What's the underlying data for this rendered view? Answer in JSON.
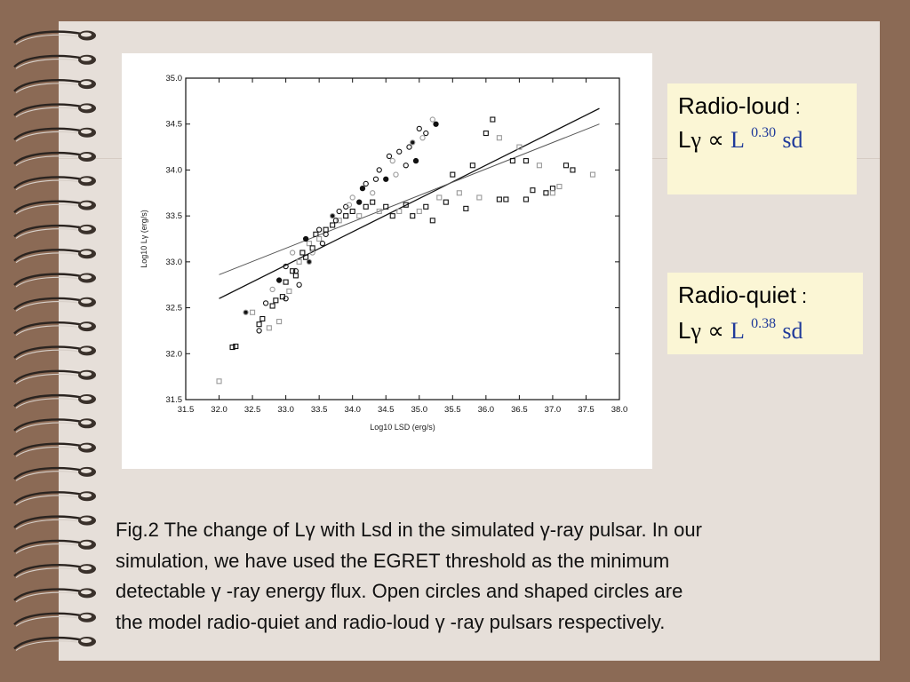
{
  "right_boxes": {
    "radio_loud": {
      "label": "Radio-loud",
      "colon": ":",
      "L": "L",
      "gamma": "γ",
      "propto": "∝",
      "L2": "L",
      "exponent": "0.30",
      "sub": "sd"
    },
    "radio_quiet": {
      "label": "Radio-quiet",
      "colon": ":",
      "L": "L",
      "gamma": "γ",
      "propto": "∝",
      "L2": "L",
      "exponent": "0.38",
      "sub": "sd"
    }
  },
  "caption": {
    "lines": [
      "Fig.2 The change of Lγ with Lsd in the simulated γ-ray pulsar. In our",
      "simulation, we have used the EGRET threshold as the minimum",
      "detectable γ -ray energy flux. Open circles and shaped circles are",
      "the model radio-quiet and radio-loud γ -ray pulsars respectively."
    ]
  },
  "colors": {
    "background": "#8b6a55",
    "paper": "#e6dfd9",
    "box_fill": "#fbf6d5",
    "formula_blue": "#1f3a9a"
  },
  "chart_data": {
    "type": "scatter",
    "title": "",
    "xlabel": "Log10 LSD (erg/s)",
    "ylabel": "Log10 Lγ (erg/s)",
    "xlim": [
      31.5,
      38.0
    ],
    "ylim": [
      31.5,
      35.0
    ],
    "x_ticks": [
      "31.5",
      "32.0",
      "32.5",
      "33.0",
      "33.5",
      "34.0",
      "34.5",
      "35.0",
      "35.5",
      "36.0",
      "36.5",
      "37.0",
      "37.5",
      "38.0"
    ],
    "y_ticks": [
      "31.5",
      "32.0",
      "32.5",
      "33.0",
      "33.5",
      "34.0",
      "34.5",
      "35.0"
    ],
    "grid": false,
    "lines": [
      {
        "points": [
          [
            32.0,
            32.6
          ],
          [
            37.7,
            34.67
          ]
        ]
      },
      {
        "points": [
          [
            32.0,
            32.86
          ],
          [
            37.7,
            34.5
          ]
        ]
      }
    ],
    "series": [
      {
        "marker": "square",
        "points": [
          [
            32.0,
            31.7
          ],
          [
            32.2,
            32.07
          ],
          [
            32.25,
            32.08
          ],
          [
            32.5,
            32.45
          ],
          [
            32.6,
            32.32
          ],
          [
            32.65,
            32.38
          ],
          [
            32.75,
            32.28
          ],
          [
            32.8,
            32.52
          ],
          [
            32.85,
            32.58
          ],
          [
            32.9,
            32.35
          ],
          [
            32.95,
            32.62
          ],
          [
            33.0,
            32.78
          ],
          [
            33.05,
            32.68
          ],
          [
            33.1,
            32.9
          ],
          [
            33.15,
            32.85
          ],
          [
            33.2,
            33.0
          ],
          [
            33.25,
            33.1
          ],
          [
            33.3,
            33.05
          ],
          [
            33.35,
            33.2
          ],
          [
            33.4,
            33.15
          ],
          [
            33.45,
            33.3
          ],
          [
            33.5,
            33.25
          ],
          [
            33.6,
            33.35
          ],
          [
            33.7,
            33.4
          ],
          [
            33.8,
            33.45
          ],
          [
            33.9,
            33.5
          ],
          [
            34.0,
            33.55
          ],
          [
            34.1,
            33.5
          ],
          [
            34.2,
            33.6
          ],
          [
            34.3,
            33.65
          ],
          [
            34.4,
            33.55
          ],
          [
            34.5,
            33.6
          ],
          [
            34.6,
            33.5
          ],
          [
            34.7,
            33.55
          ],
          [
            34.8,
            33.62
          ],
          [
            34.9,
            33.5
          ],
          [
            35.0,
            33.55
          ],
          [
            35.1,
            33.6
          ],
          [
            35.2,
            33.45
          ],
          [
            35.3,
            33.7
          ],
          [
            35.4,
            33.65
          ],
          [
            35.5,
            33.95
          ],
          [
            35.6,
            33.75
          ],
          [
            35.7,
            33.58
          ],
          [
            35.8,
            34.05
          ],
          [
            35.9,
            33.7
          ],
          [
            36.0,
            34.4
          ],
          [
            36.1,
            34.55
          ],
          [
            36.2,
            34.35
          ],
          [
            36.3,
            33.68
          ],
          [
            36.4,
            34.1
          ],
          [
            36.5,
            34.25
          ],
          [
            36.6,
            34.1
          ],
          [
            36.7,
            33.78
          ],
          [
            36.8,
            34.05
          ],
          [
            36.9,
            33.75
          ],
          [
            37.0,
            33.8
          ],
          [
            37.1,
            33.82
          ],
          [
            37.2,
            34.05
          ],
          [
            37.3,
            34.0
          ],
          [
            37.6,
            33.95
          ],
          [
            36.2,
            33.68
          ],
          [
            36.6,
            33.68
          ],
          [
            37.0,
            33.75
          ]
        ]
      },
      {
        "marker": "circle",
        "points": [
          [
            32.4,
            32.45
          ],
          [
            32.6,
            32.25
          ],
          [
            32.7,
            32.55
          ],
          [
            32.8,
            32.7
          ],
          [
            32.9,
            32.8
          ],
          [
            33.0,
            32.95
          ],
          [
            33.1,
            33.1
          ],
          [
            33.2,
            32.75
          ],
          [
            33.3,
            33.25
          ],
          [
            33.4,
            33.1
          ],
          [
            33.5,
            33.35
          ],
          [
            33.6,
            33.3
          ],
          [
            33.7,
            33.5
          ],
          [
            33.8,
            33.55
          ],
          [
            33.9,
            33.6
          ],
          [
            34.0,
            33.7
          ],
          [
            34.1,
            33.65
          ],
          [
            34.2,
            33.85
          ],
          [
            34.3,
            33.75
          ],
          [
            34.4,
            34.0
          ],
          [
            34.5,
            33.9
          ],
          [
            34.6,
            34.1
          ],
          [
            34.7,
            34.2
          ],
          [
            34.8,
            34.05
          ],
          [
            34.9,
            34.3
          ],
          [
            35.0,
            34.45
          ],
          [
            35.1,
            34.4
          ],
          [
            35.2,
            34.55
          ],
          [
            35.25,
            34.5
          ],
          [
            34.55,
            34.15
          ],
          [
            34.65,
            33.95
          ],
          [
            34.85,
            34.25
          ],
          [
            34.95,
            34.1
          ],
          [
            35.05,
            34.35
          ],
          [
            33.0,
            32.6
          ],
          [
            33.15,
            32.9
          ],
          [
            33.35,
            33.0
          ],
          [
            33.55,
            33.2
          ],
          [
            33.75,
            33.45
          ],
          [
            33.95,
            33.62
          ],
          [
            34.15,
            33.8
          ],
          [
            34.35,
            33.9
          ]
        ]
      }
    ]
  }
}
